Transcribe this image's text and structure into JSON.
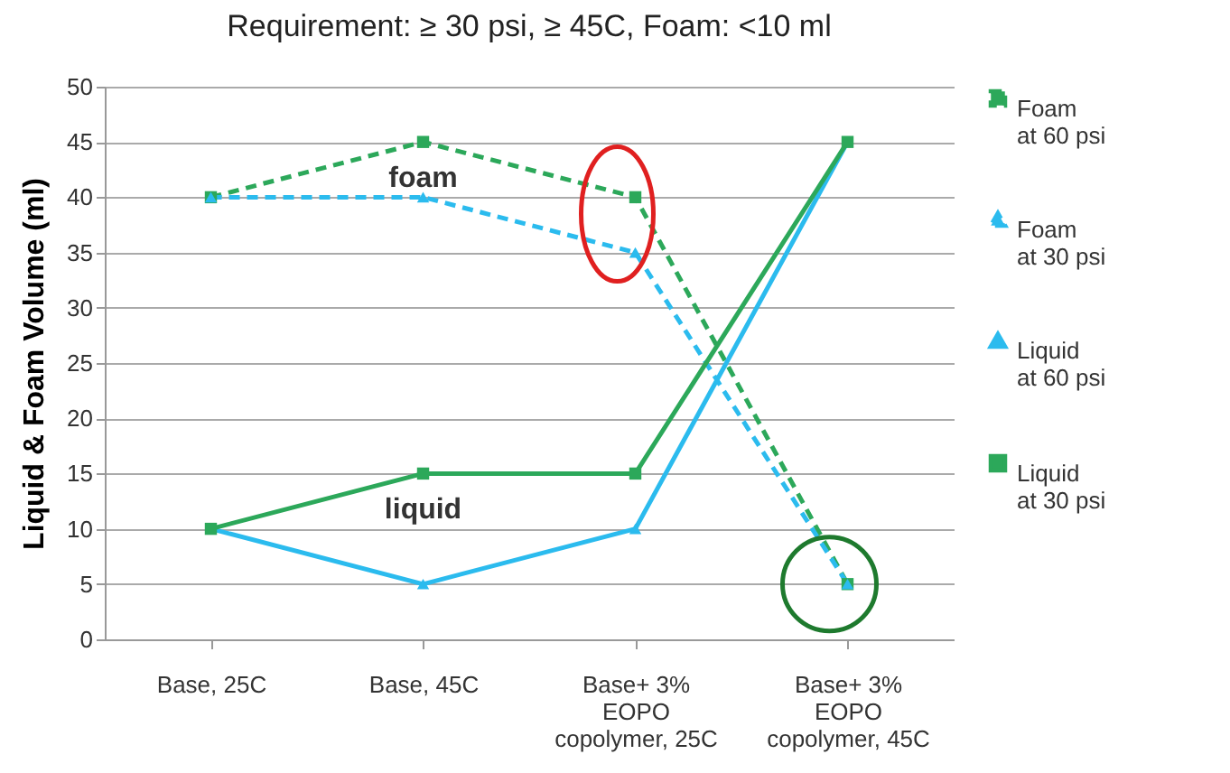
{
  "chart_data": {
    "type": "line",
    "title": "Requirement:   ≥ 30 psi,    ≥ 45C,    Foam: <10 ml",
    "ylabel": "Liquid & Foam Volume (ml)",
    "categories": [
      "Base, 25C",
      "Base, 45C",
      "Base+ 3%\nEOPO\ncopolymer, 25C",
      "Base+ 3%\nEOPO\ncopolymer, 45C"
    ],
    "series": [
      {
        "name": "Foam\nat 60 psi",
        "color": "#2ca85a",
        "values": [
          40,
          45,
          40,
          5
        ],
        "marker": "square",
        "line_style": "dashed"
      },
      {
        "name": "Foam\nat 30 psi",
        "color": "#2bbbee",
        "values": [
          40,
          40,
          35,
          5
        ],
        "marker": "triangle",
        "line_style": "dashed"
      },
      {
        "name": "Liquid\nat 60 psi",
        "color": "#2bbbee",
        "values": [
          10,
          5,
          10,
          45
        ],
        "marker": "triangle",
        "line_style": "solid"
      },
      {
        "name": "Liquid\nat 30 psi",
        "color": "#2ca85a",
        "values": [
          10,
          15,
          15,
          45
        ],
        "marker": "square",
        "line_style": "solid"
      }
    ],
    "annotations": [
      "foam",
      "liquid"
    ],
    "ylim": [
      0,
      50
    ],
    "yticks": [
      0,
      5,
      10,
      15,
      20,
      25,
      30,
      35,
      40,
      45,
      50
    ],
    "grid": "y",
    "legend": "right"
  }
}
